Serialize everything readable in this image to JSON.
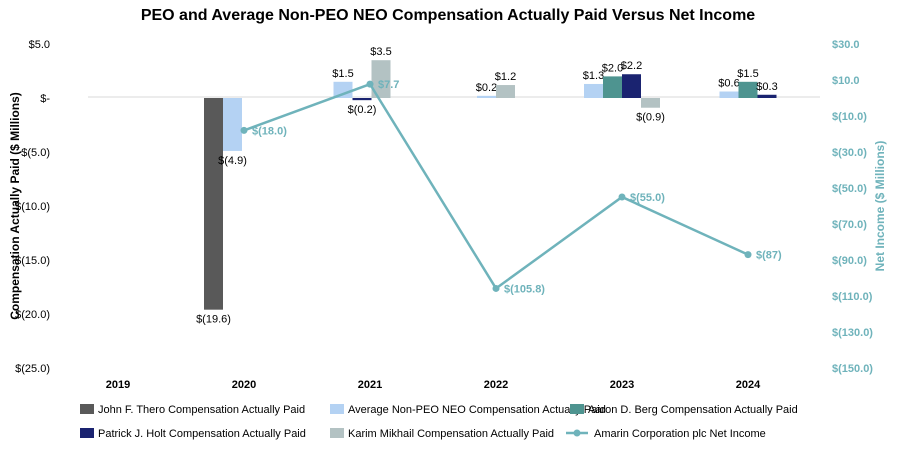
{
  "chart_data": {
    "type": "bar",
    "title": "PEO and Average Non-PEO NEO Compensation Actually Paid Versus Net Income",
    "ylabel": "Compensation Actually Paid ($ Millions)",
    "y2label": "Net Income ($ Millions)",
    "categories": [
      "2019",
      "2020",
      "2021",
      "2022",
      "2023",
      "2024"
    ],
    "ylim": [
      -25,
      5
    ],
    "y_ticks": [
      5,
      0,
      -5,
      -10,
      -15,
      -20,
      -25
    ],
    "y_tick_labels": [
      "$5.0",
      "$-",
      "$(5.0)",
      "$(10.0)",
      "$(15.0)",
      "$(20.0)",
      "$(25.0)"
    ],
    "y2lim": [
      -150,
      30
    ],
    "y2_ticks": [
      30,
      10,
      -10,
      -30,
      -50,
      -70,
      -90,
      -110,
      -130,
      -150
    ],
    "y2_tick_labels": [
      "$30.0",
      "$10.0",
      "$(10.0)",
      "$(30.0)",
      "$(50.0)",
      "$(70.0)",
      "$(90.0)",
      "$(110.0)",
      "$(130.0)",
      "$(150.0)"
    ],
    "grid": false,
    "legend_position": "bottom",
    "series": [
      {
        "name": "John F. Thero Compensation Actually Paid",
        "color": "#595959",
        "values": [
          null,
          -19.6,
          null,
          null,
          null,
          null
        ],
        "labels": [
          null,
          "$(19.6)",
          null,
          null,
          null,
          null
        ]
      },
      {
        "name": "Average Non-PEO NEO Compensation Actually Paid",
        "color": "#b4d2f3",
        "values": [
          null,
          -4.9,
          1.5,
          0.2,
          1.3,
          0.6
        ],
        "labels": [
          null,
          "$(4.9)",
          "$1.5",
          "$0.2",
          "$1.3",
          "$0.6"
        ]
      },
      {
        "name": "Aaron D. Berg Compensation Actually Paid",
        "color": "#4e9490",
        "values": [
          null,
          null,
          null,
          null,
          2.0,
          1.5
        ],
        "labels": [
          null,
          null,
          null,
          null,
          "$2.0",
          "$1.5"
        ]
      },
      {
        "name": "Patrick J. Holt Compensation Actually Paid",
        "color": "#1a2370",
        "values": [
          null,
          null,
          -0.2,
          null,
          2.2,
          0.3
        ],
        "labels": [
          null,
          null,
          "$(0.2)",
          null,
          "$2.2",
          "$0.3"
        ]
      },
      {
        "name": "Karim Mikhail Compensation Actually Paid",
        "color": "#b3c2c3",
        "values": [
          null,
          null,
          3.5,
          1.2,
          -0.9,
          null
        ],
        "labels": [
          null,
          null,
          "$3.5",
          "$1.2",
          "$(0.9)",
          null
        ]
      }
    ],
    "line_series": {
      "name": "Amarin Corporation plc Net Income",
      "color": "#6fb3bb",
      "axis": "right",
      "values": [
        null,
        -18.0,
        7.7,
        -105.8,
        -55.0,
        -87
      ],
      "labels": [
        null,
        "$(18.0)",
        "$7.7",
        "$(105.8)",
        "$(55.0)",
        "$(87)"
      ]
    }
  }
}
